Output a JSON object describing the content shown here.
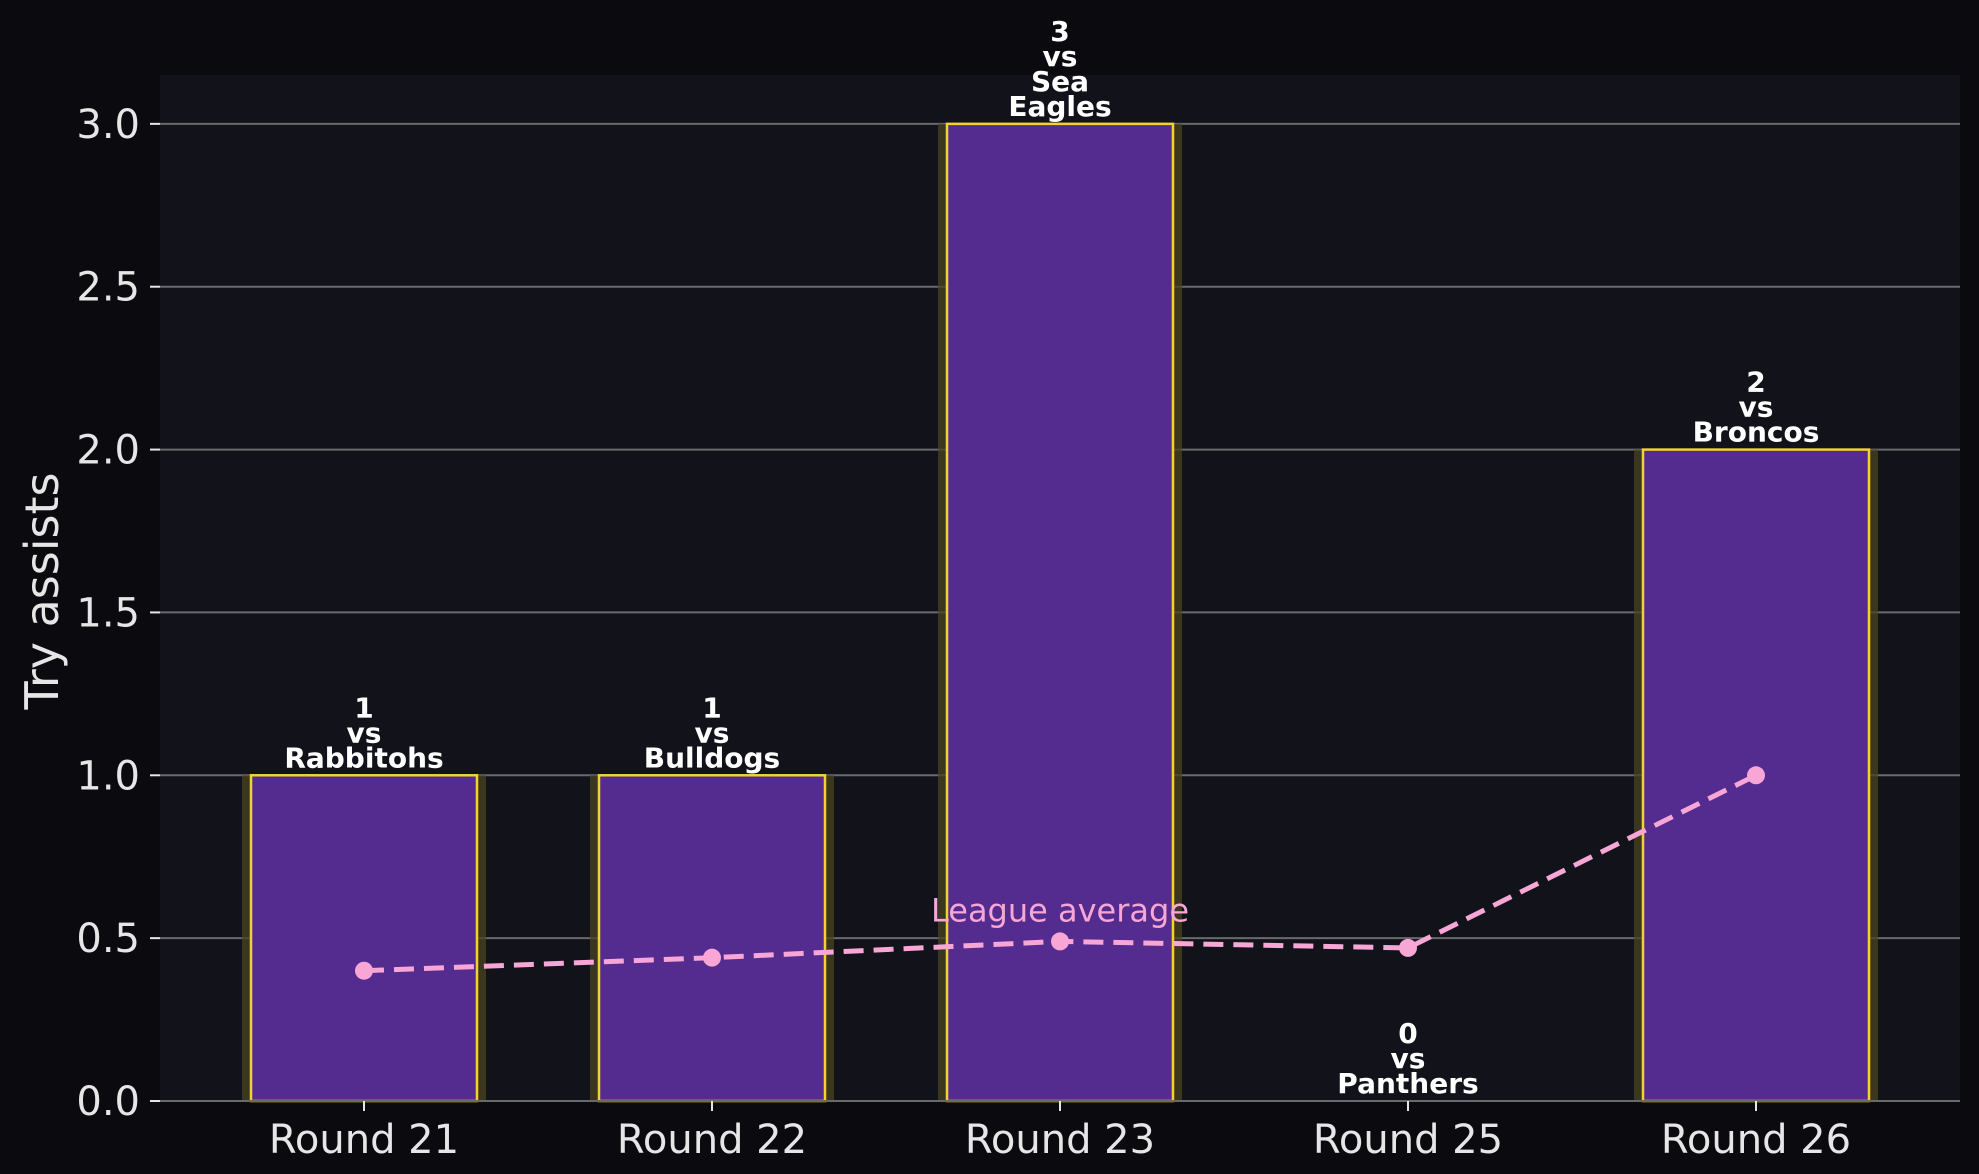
{
  "chart_data": {
    "type": "bar",
    "title": "",
    "xlabel": "",
    "ylabel": "Try assists",
    "categories": [
      "Round 21",
      "Round 22",
      "Round 23",
      "Round 25",
      "Round 26"
    ],
    "values": [
      1,
      1,
      3,
      0,
      2
    ],
    "bar_labels": [
      [
        "1",
        "vs",
        "Rabbitohs"
      ],
      [
        "1",
        "vs",
        "Bulldogs"
      ],
      [
        "3",
        "vs",
        "Sea",
        "Eagles"
      ],
      [
        "0",
        "vs",
        "Panthers"
      ],
      [
        "2",
        "vs",
        "Broncos"
      ]
    ],
    "line_series": {
      "name": "League average",
      "values": [
        0.4,
        0.44,
        0.49,
        0.47,
        1.0
      ],
      "style": "dashed",
      "color": "#f7a6d6"
    },
    "ylim": [
      0,
      3.15
    ],
    "yticks": [
      0.0,
      0.5,
      1.0,
      1.5,
      2.0,
      2.5,
      3.0
    ],
    "ytick_labels": [
      "0.0",
      "0.5",
      "1.0",
      "1.5",
      "2.0",
      "2.5",
      "3.0"
    ],
    "grid": "horizontal",
    "colors": {
      "background": "#0b0b0f",
      "plot_background": "#12131a",
      "bar_fill": "#542c8f",
      "bar_edge": "#f2d22e",
      "bar_glow": "#4a4320",
      "grid": "#6a6a6a",
      "text": "#e6e6e6"
    }
  }
}
